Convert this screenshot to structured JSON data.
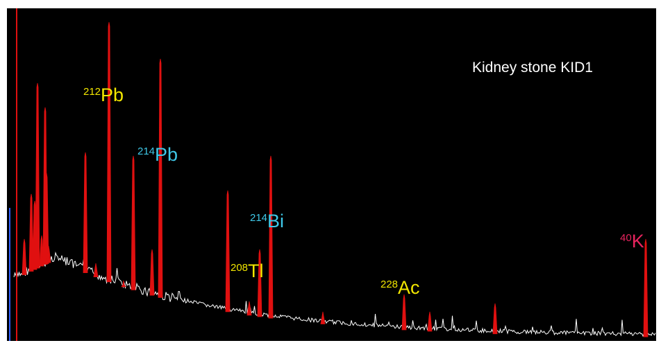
{
  "title": "Kidney stone KID1",
  "labels": [
    {
      "mass": "212",
      "element": "Pb"
    },
    {
      "mass": "214",
      "element": "Pb"
    },
    {
      "mass": "214",
      "element": "Bi"
    },
    {
      "mass": "208",
      "element": "Tl"
    },
    {
      "mass": "228",
      "element": "Ac"
    },
    {
      "mass": "40",
      "element": "K"
    }
  ]
}
